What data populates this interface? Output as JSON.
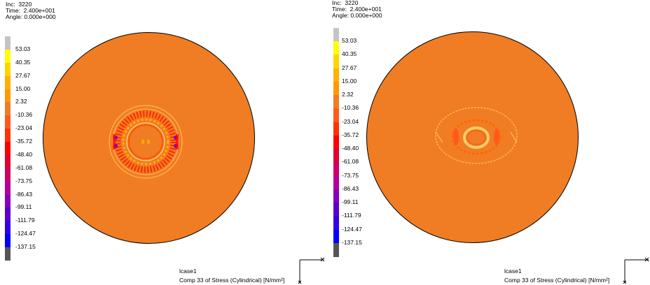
{
  "colors": {
    "disk": "#f07d24",
    "bands": [
      "#c4c4c4",
      "#ffff00",
      "#ffd400",
      "#ffb000",
      "#ff9900",
      "#f07d24",
      "#ff5a1e",
      "#ff3300",
      "#ff0000",
      "#e00033",
      "#cc0066",
      "#b30099",
      "#8800bb",
      "#5a00cc",
      "#3300e6",
      "#0000ff",
      "#555555"
    ]
  },
  "legend": {
    "values": [
      "53.03",
      "40.35",
      "27.67",
      "15.00",
      "2.32",
      "-10.36",
      "-23.04",
      "-35.72",
      "-48.40",
      "-61.08",
      "-73.75",
      "-86.43",
      "-99.11",
      "-111.79",
      "-124.47",
      "-137.15"
    ]
  },
  "panels": [
    {
      "header": {
        "inc": "Inc:  3220",
        "time": "Time:  2.400e+001",
        "angle": "Angle: 0.000e+000"
      },
      "caption": {
        "lcase": "lcase1",
        "component": "Comp 33 of Stress (Cylindrical) [N/mm²]"
      }
    },
    {
      "header": {
        "inc": "Inc:  3220",
        "time": "Time:  2.400e+001",
        "angle": "Angle: 0.000e+000"
      },
      "caption": {
        "lcase": "lcase1",
        "component": "Comp 33 of Stress (Cylindrical) [N/mm²]"
      }
    }
  ]
}
